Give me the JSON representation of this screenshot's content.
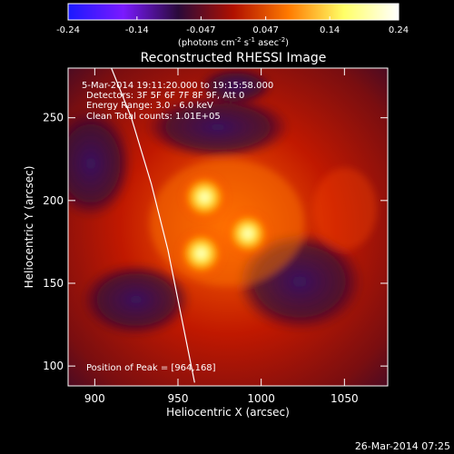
{
  "colorbar": {
    "tick_labels": [
      "-0.24",
      "-0.14",
      "-0.047",
      "0.047",
      "0.14",
      "0.24"
    ],
    "tick_values": [
      -0.24,
      -0.14,
      -0.047,
      0.047,
      0.14,
      0.24
    ],
    "range": [
      -0.24,
      0.24
    ],
    "units": "(photons cm",
    "units_exp1": "-2",
    "units_mid1": " s",
    "units_exp2": "-1",
    "units_mid2": " asec",
    "units_exp3": "-2",
    "units_end": ")",
    "colors": [
      "#1a1aff",
      "#7a1aff",
      "#2a0a3a",
      "#b01000",
      "#ff7a00",
      "#ffff66",
      "#ffffff"
    ]
  },
  "plot": {
    "title": "Reconstructed RHESSI Image",
    "info_lines": [
      "5-Mar-2014 19:11:20.000 to 19:15:58.000",
      "Detectors: 3F 5F 6F 7F 8F 9F, Att 0",
      "Energy Range: 3.0 - 6.0 keV",
      "Clean     Total counts: 1.01E+05"
    ],
    "peak_label": "Position of Peak = [964,168]",
    "footer_date": "26-Mar-2014 07:25"
  },
  "chart_data": {
    "type": "heatmap",
    "title": "Reconstructed RHESSI Image",
    "xlabel": "Heliocentric X (arcsec)",
    "ylabel": "Heliocentric Y (arcsec)",
    "xlim": [
      884,
      1076
    ],
    "ylim": [
      88,
      280
    ],
    "x_ticks": [
      900,
      950,
      1000,
      1050
    ],
    "y_ticks": [
      100,
      150,
      200,
      250
    ],
    "peak": [
      964,
      168
    ],
    "limb_curve": [
      [
        960,
        90
      ],
      [
        952,
        130
      ],
      [
        944,
        170
      ],
      [
        934,
        210
      ],
      [
        922,
        250
      ],
      [
        910,
        280
      ]
    ],
    "sources": [
      {
        "x": 966,
        "y": 202,
        "intensity": 0.24
      },
      {
        "x": 964,
        "y": 168,
        "intensity": 0.24
      },
      {
        "x": 992,
        "y": 180,
        "intensity": 0.22
      }
    ]
  }
}
